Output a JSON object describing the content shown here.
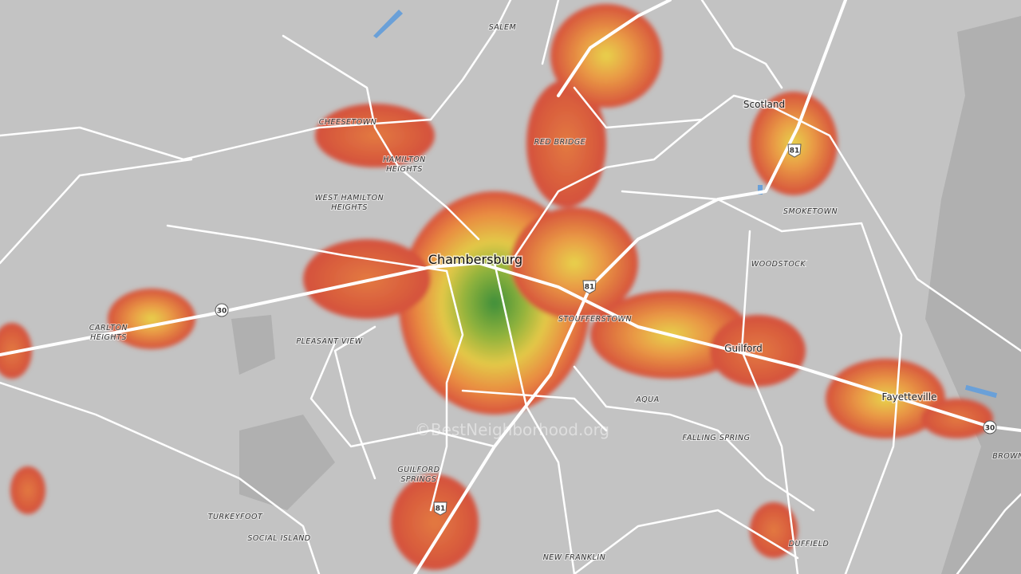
{
  "places": [
    "SALEM",
    "CHEESETOWN",
    [
      "HAMILTON",
      "HEIGHTS"
    ],
    "RED BRIDGE",
    [
      "WEST HAMILTON",
      "HEIGHTS"
    ],
    "Scotland",
    "SMOKETOWN",
    "Chambersburg",
    "WOODSTOCK",
    "STOUFFERSTOWN",
    [
      "CARLTON",
      "HEIGHTS"
    ],
    "PLEASANT VIEW",
    "Guilford",
    "Fayetteville",
    "AQUA",
    "FALLING SPRING",
    [
      "GUILFORD",
      "SPRINGS"
    ],
    "TURKEYFOOT",
    "SOCIAL ISLAND",
    "DUFFIELD",
    "NEW FRANKLIN",
    "BROWN"
  ],
  "shields": [
    "30",
    "30",
    "81",
    "81",
    "81"
  ],
  "watermark": "©BestNeighborhood.org"
}
